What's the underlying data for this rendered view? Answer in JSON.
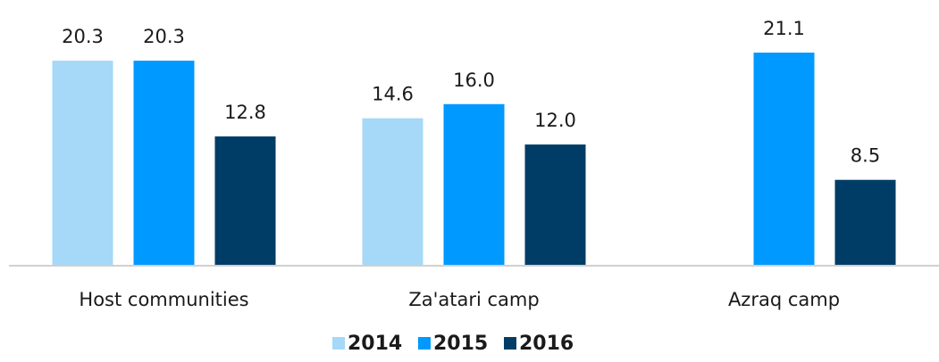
{
  "chart_data": {
    "type": "bar",
    "categories": [
      "Host communities",
      "Za'atari camp",
      "Azraq camp"
    ],
    "series": [
      {
        "name": "2014",
        "color": "#a6d8f7",
        "values": [
          20.3,
          14.6,
          null
        ],
        "value_labels": [
          "20.3",
          "14.6",
          null
        ]
      },
      {
        "name": "2015",
        "color": "#0099ff",
        "values": [
          20.3,
          16.0,
          21.1
        ],
        "value_labels": [
          "20.3",
          "16.0",
          "21.1"
        ]
      },
      {
        "name": "2016",
        "color": "#003d66",
        "values": [
          12.8,
          12.0,
          8.5
        ],
        "value_labels": [
          "12.8",
          "12.0",
          "8.5"
        ]
      }
    ],
    "legend": "bottom"
  }
}
